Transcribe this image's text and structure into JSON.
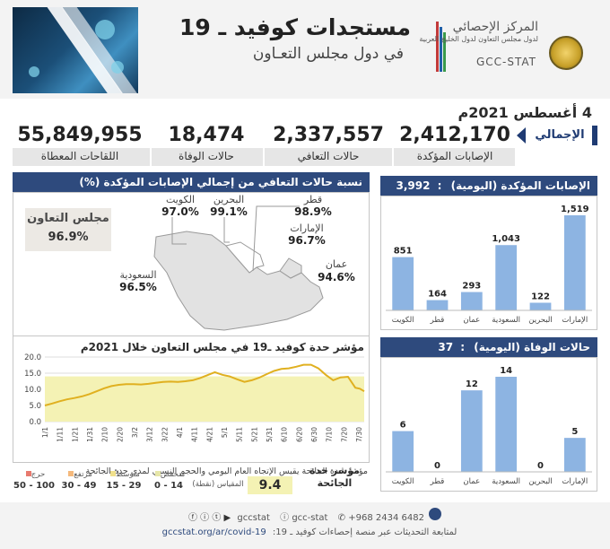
{
  "header": {
    "title": "مستجدات كوفيد ـ 19",
    "subtitle": "في دول مجلس التعـاون",
    "logo_ar_line1": "المركز الإحصائي",
    "logo_ar_line2": "لدول مجلس التعاون لدول الخليج العربية",
    "logo_en": "GCC-STAT"
  },
  "date": "4 أغسطس 2021م",
  "totals": {
    "label": "الإجمالي",
    "confirmed": {
      "value": "2,412,170",
      "label": "الإصابات المؤكدة"
    },
    "recovered": {
      "value": "2,337,557",
      "label": "حالات التعافي"
    },
    "deaths": {
      "value": "18,474",
      "label": "حالات الوفاة"
    },
    "vaccines": {
      "value": "55,849,955",
      "label": "اللقاحات المعطاة"
    }
  },
  "recovery_map": {
    "title": "نسبة حالات التعافي من إجمالي الإصابات المؤكدة (%)",
    "gcc_label": "مجلس التعاون",
    "gcc_value": "96.9%",
    "countries": [
      {
        "name": "الكويت",
        "value": "97.0%"
      },
      {
        "name": "البحرين",
        "value": "99.1%"
      },
      {
        "name": "قطر",
        "value": "98.9%"
      },
      {
        "name": "الإمارات",
        "value": "96.7%"
      },
      {
        "name": "عمان",
        "value": "94.6%"
      },
      {
        "name": "السعودية",
        "value": "96.5%"
      }
    ]
  },
  "severity": {
    "title": "مؤشر حدة كوفيد ـ19 في مجلس التعاون خلال 2021م",
    "note": "مؤشر حدة الجائحة يقيس الإتجاه العام اليومي والحجم النسبي لمدى حدة الجائحة",
    "index_label": "مؤشر حدة الجائحة",
    "index_value": "9.4",
    "scale_label": "المقياس (نقطة)",
    "legend": [
      {
        "name": "منخفض",
        "range": "0 - 14",
        "color": "#e6e6a8"
      },
      {
        "name": "متوسط",
        "range": "15 - 29",
        "color": "#f0e08c"
      },
      {
        "name": "مرتفع",
        "range": "30 - 49",
        "color": "#f5b97c"
      },
      {
        "name": "حرج",
        "range": "50 - 100",
        "color": "#e87a6e"
      }
    ]
  },
  "chart_data": [
    {
      "type": "line",
      "title": "مؤشر حدة كوفيد ـ19 في مجلس التعاون خلال 2021م",
      "ylim": [
        0,
        20
      ],
      "y_ticks": [
        "0.0",
        "5.0",
        "10.0",
        "15.0",
        "20.0"
      ],
      "x_tick_labels": [
        "1/1",
        "1/11",
        "1/21",
        "1/31",
        "2/10",
        "2/20",
        "3/2",
        "3/12",
        "3/22",
        "4/1",
        "4/11",
        "4/21",
        "5/1",
        "5/11",
        "5/21",
        "5/31",
        "6/10",
        "6/20",
        "6/30",
        "7/10",
        "7/20",
        "7/30"
      ],
      "band": {
        "from": 0,
        "to": 14,
        "color": "#f4f2b4"
      },
      "series": [
        {
          "color": "#e0b020",
          "x": [
            0,
            5,
            10,
            15,
            20,
            25,
            30,
            35,
            40,
            45,
            50,
            55,
            60,
            65,
            70,
            75,
            80,
            85,
            90,
            95,
            100,
            105,
            110,
            115,
            120,
            125,
            130,
            135,
            140,
            145,
            150,
            155,
            160,
            165,
            170,
            175,
            180,
            185,
            190,
            195,
            200,
            205,
            210,
            213,
            216
          ],
          "values": [
            5.0,
            5.6,
            6.3,
            6.9,
            7.3,
            7.8,
            8.5,
            9.4,
            10.3,
            11.0,
            11.4,
            11.6,
            11.6,
            11.5,
            11.7,
            12.0,
            12.3,
            12.4,
            12.3,
            12.5,
            12.8,
            13.5,
            14.4,
            15.3,
            14.5,
            14.0,
            13.1,
            12.3,
            12.8,
            13.6,
            14.7,
            15.7,
            16.3,
            16.5,
            17.0,
            17.6,
            17.6,
            16.5,
            14.5,
            12.8,
            13.7,
            13.9,
            10.5,
            10.2,
            9.4
          ]
        }
      ]
    },
    {
      "type": "bar",
      "title": "الإصابات المؤكدة (اليومية)",
      "total": "3,992",
      "categories": [
        "الإمارات",
        "البحرين",
        "السعودية",
        "عمان",
        "قطر",
        "الكويت"
      ],
      "values": [
        1519,
        122,
        1043,
        293,
        164,
        851
      ],
      "value_labels": [
        "1,519",
        "122",
        "1,043",
        "293",
        "164",
        "851"
      ],
      "color": "#8db4e2"
    },
    {
      "type": "bar",
      "title": "حالات الوفاة (اليومية)",
      "total": "37",
      "categories": [
        "الإمارات",
        "البحرين",
        "السعودية",
        "عمان",
        "قطر",
        "الكويت"
      ],
      "values": [
        5,
        0,
        14,
        12,
        0,
        6
      ],
      "value_labels": [
        "5",
        "0",
        "14",
        "12",
        "0",
        "6"
      ],
      "color": "#8db4e2"
    }
  ],
  "footer": {
    "phone": "+968 2434 6482",
    "handle1": "gcc-stat",
    "handle2": "gccstat",
    "follow": "لمتابعة التحديثات عبر منصة إحصاءات كوفيد ـ 19:",
    "url": "gccstat.org/ar/covid-19"
  }
}
